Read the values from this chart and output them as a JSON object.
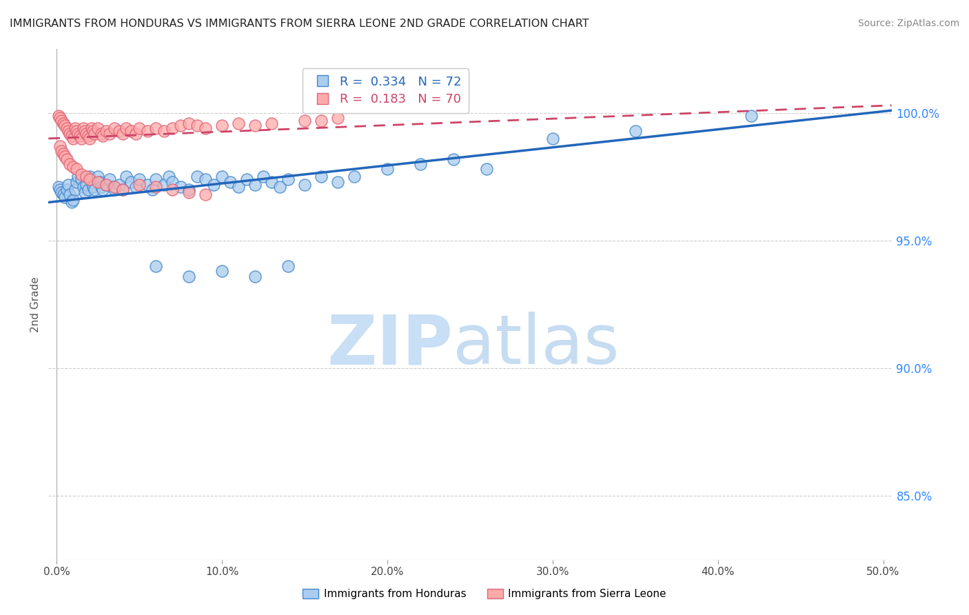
{
  "title": "IMMIGRANTS FROM HONDURAS VS IMMIGRANTS FROM SIERRA LEONE 2ND GRADE CORRELATION CHART",
  "source": "Source: ZipAtlas.com",
  "ylabel": "2nd Grade",
  "xlabel_ticks": [
    "0.0%",
    "10.0%",
    "20.0%",
    "30.0%",
    "40.0%",
    "50.0%"
  ],
  "xlabel_vals": [
    0.0,
    0.1,
    0.2,
    0.3,
    0.4,
    0.5
  ],
  "ylabel_ticks": [
    "85.0%",
    "90.0%",
    "95.0%",
    "100.0%"
  ],
  "ylabel_vals": [
    0.85,
    0.9,
    0.95,
    1.0
  ],
  "ylim": [
    0.825,
    1.025
  ],
  "xlim": [
    -0.005,
    0.505
  ],
  "R_blue": 0.334,
  "N_blue": 72,
  "R_pink": 0.183,
  "N_pink": 70,
  "blue_color": "#aaccee",
  "blue_edge_color": "#4488cc",
  "pink_color": "#ffaaaa",
  "pink_edge_color": "#dd6677",
  "blue_line_color": "#2266bb",
  "pink_line_color": "#cc4466",
  "legend_label_blue": "Immigrants from Honduras",
  "legend_label_pink": "Immigrants from Sierra Leone",
  "blue_scatter_x": [
    0.001,
    0.002,
    0.003,
    0.004,
    0.005,
    0.006,
    0.007,
    0.008,
    0.009,
    0.01,
    0.011,
    0.012,
    0.013,
    0.015,
    0.016,
    0.017,
    0.018,
    0.019,
    0.02,
    0.021,
    0.022,
    0.023,
    0.025,
    0.026,
    0.027,
    0.028,
    0.03,
    0.032,
    0.034,
    0.035,
    0.038,
    0.04,
    0.042,
    0.045,
    0.048,
    0.05,
    0.055,
    0.058,
    0.06,
    0.065,
    0.068,
    0.07,
    0.075,
    0.08,
    0.085,
    0.09,
    0.095,
    0.1,
    0.105,
    0.11,
    0.115,
    0.12,
    0.125,
    0.13,
    0.135,
    0.14,
    0.15,
    0.16,
    0.17,
    0.18,
    0.2,
    0.22,
    0.24,
    0.26,
    0.3,
    0.35,
    0.42,
    0.06,
    0.08,
    0.1,
    0.12,
    0.14
  ],
  "blue_scatter_y": [
    0.971,
    0.97,
    0.969,
    0.968,
    0.967,
    0.97,
    0.972,
    0.968,
    0.965,
    0.966,
    0.97,
    0.973,
    0.975,
    0.974,
    0.971,
    0.969,
    0.972,
    0.97,
    0.975,
    0.973,
    0.971,
    0.97,
    0.975,
    0.973,
    0.971,
    0.97,
    0.972,
    0.974,
    0.971,
    0.97,
    0.972,
    0.97,
    0.975,
    0.973,
    0.971,
    0.974,
    0.972,
    0.97,
    0.974,
    0.972,
    0.975,
    0.973,
    0.971,
    0.97,
    0.975,
    0.974,
    0.972,
    0.975,
    0.973,
    0.971,
    0.974,
    0.972,
    0.975,
    0.973,
    0.971,
    0.974,
    0.972,
    0.975,
    0.973,
    0.975,
    0.978,
    0.98,
    0.982,
    0.978,
    0.99,
    0.993,
    0.999,
    0.94,
    0.936,
    0.938,
    0.936,
    0.94
  ],
  "pink_scatter_x": [
    0.001,
    0.002,
    0.003,
    0.004,
    0.005,
    0.006,
    0.007,
    0.008,
    0.009,
    0.01,
    0.011,
    0.012,
    0.013,
    0.014,
    0.015,
    0.016,
    0.017,
    0.018,
    0.019,
    0.02,
    0.021,
    0.022,
    0.023,
    0.025,
    0.027,
    0.028,
    0.03,
    0.032,
    0.035,
    0.038,
    0.04,
    0.042,
    0.045,
    0.048,
    0.05,
    0.055,
    0.06,
    0.065,
    0.07,
    0.075,
    0.08,
    0.085,
    0.09,
    0.1,
    0.11,
    0.12,
    0.13,
    0.15,
    0.16,
    0.17,
    0.002,
    0.003,
    0.004,
    0.005,
    0.006,
    0.008,
    0.01,
    0.012,
    0.015,
    0.018,
    0.02,
    0.025,
    0.03,
    0.035,
    0.04,
    0.05,
    0.06,
    0.07,
    0.08,
    0.09
  ],
  "pink_scatter_y": [
    0.999,
    0.998,
    0.997,
    0.996,
    0.995,
    0.994,
    0.993,
    0.992,
    0.991,
    0.99,
    0.994,
    0.993,
    0.992,
    0.991,
    0.99,
    0.994,
    0.993,
    0.992,
    0.991,
    0.99,
    0.994,
    0.993,
    0.992,
    0.994,
    0.992,
    0.991,
    0.993,
    0.992,
    0.994,
    0.993,
    0.992,
    0.994,
    0.993,
    0.992,
    0.994,
    0.993,
    0.994,
    0.993,
    0.994,
    0.995,
    0.996,
    0.995,
    0.994,
    0.995,
    0.996,
    0.995,
    0.996,
    0.997,
    0.997,
    0.998,
    0.987,
    0.985,
    0.984,
    0.983,
    0.982,
    0.98,
    0.979,
    0.978,
    0.976,
    0.975,
    0.974,
    0.973,
    0.972,
    0.971,
    0.97,
    0.972,
    0.971,
    0.97,
    0.969,
    0.968
  ]
}
